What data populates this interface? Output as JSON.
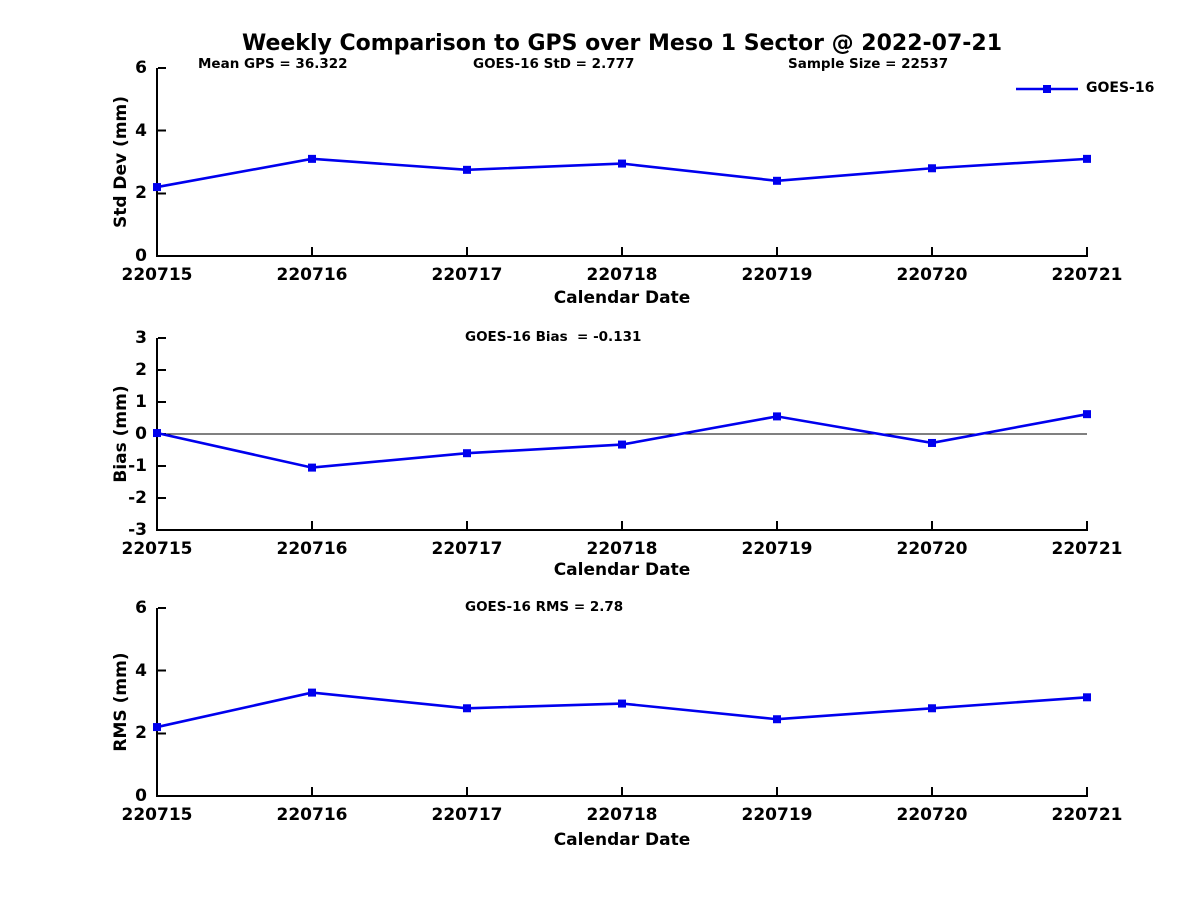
{
  "title": "Weekly Comparison to GPS over Meso 1 Sector @ 2022-07-21",
  "legend": {
    "label": "GOES-16",
    "position": "top-right"
  },
  "colors": {
    "series": "#0000EE",
    "axis": "#000000",
    "background": "#ffffff",
    "text": "#000000"
  },
  "chart_data": [
    {
      "type": "line",
      "name": "std-dev",
      "annotations": [
        "Mean GPS = 36.322",
        "GOES-16 StD = 2.777",
        "Sample Size = 22537"
      ],
      "categories": [
        "220715",
        "220716",
        "220717",
        "220718",
        "220719",
        "220720",
        "220721"
      ],
      "series": [
        {
          "name": "GOES-16",
          "values": [
            2.2,
            3.1,
            2.75,
            2.95,
            2.4,
            2.8,
            3.1
          ]
        }
      ],
      "xlabel": "Calendar Date",
      "ylabel": "Std Dev (mm)",
      "ylim": [
        0,
        6
      ],
      "yticks": [
        0,
        2,
        4,
        6
      ],
      "zero_line": false,
      "grid": false,
      "marker": "square"
    },
    {
      "type": "line",
      "name": "bias",
      "annotations": [
        "GOES-16 Bias  = -0.131"
      ],
      "categories": [
        "220715",
        "220716",
        "220717",
        "220718",
        "220719",
        "220720",
        "220721"
      ],
      "series": [
        {
          "name": "GOES-16",
          "values": [
            0.03,
            -1.05,
            -0.6,
            -0.33,
            0.55,
            -0.28,
            0.62
          ]
        }
      ],
      "xlabel": "Calendar Date",
      "ylabel": "Bias (mm)",
      "ylim": [
        -3,
        3
      ],
      "yticks": [
        -3,
        -2,
        -1,
        0,
        1,
        2,
        3
      ],
      "zero_line": true,
      "grid": false,
      "marker": "square"
    },
    {
      "type": "line",
      "name": "rms",
      "annotations": [
        "GOES-16 RMS = 2.78"
      ],
      "categories": [
        "220715",
        "220716",
        "220717",
        "220718",
        "220719",
        "220720",
        "220721"
      ],
      "series": [
        {
          "name": "GOES-16",
          "values": [
            2.2,
            3.3,
            2.8,
            2.95,
            2.45,
            2.8,
            3.15
          ]
        }
      ],
      "xlabel": "Calendar Date",
      "ylabel": "RMS (mm)",
      "ylim": [
        0,
        6
      ],
      "yticks": [
        0,
        2,
        4,
        6
      ],
      "zero_line": false,
      "grid": false,
      "marker": "square"
    }
  ]
}
